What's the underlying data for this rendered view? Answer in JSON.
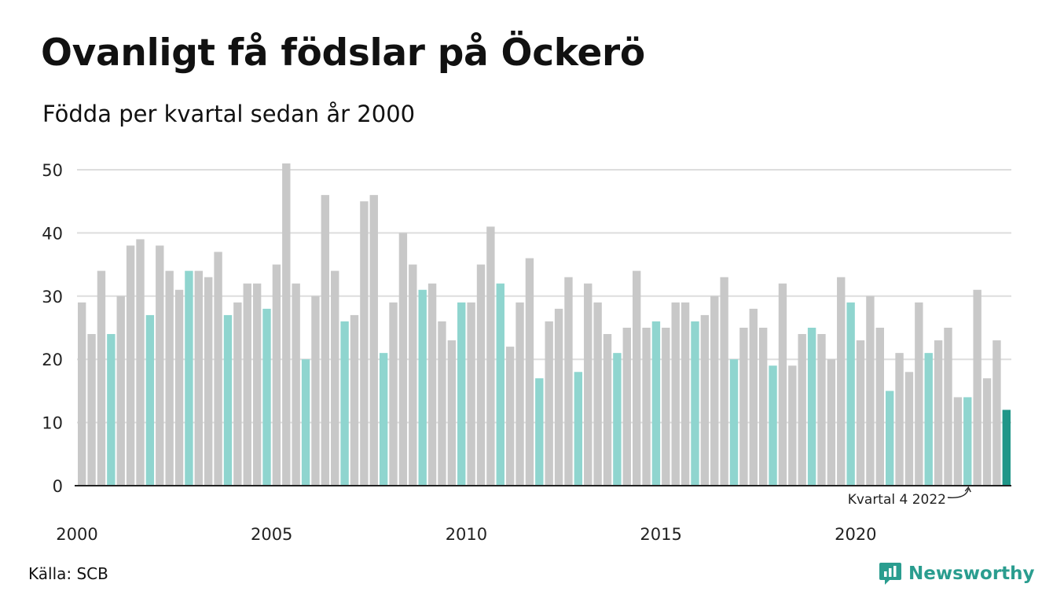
{
  "header": {
    "title": "Ovanligt få födslar på Öckerö",
    "subtitle": "Födda per kvartal sedan år 2000"
  },
  "footer": {
    "source": "Källa: SCB",
    "brand": "Newsworthy"
  },
  "colors": {
    "bar_default": "#c8c8c8",
    "bar_q4": "#8fd5cf",
    "bar_latest": "#1f9688",
    "grid": "#dddddd",
    "axis": "#222222",
    "brand": "#2a9d8f"
  },
  "chart_data": {
    "type": "bar",
    "title": "Ovanligt få födslar på Öckerö",
    "subtitle": "Födda per kvartal sedan år 2000",
    "ylim": [
      0,
      50
    ],
    "y_ticks": [
      0,
      10,
      20,
      30,
      40,
      50
    ],
    "x_tick_labels": [
      "2000",
      "2005",
      "2010",
      "2015",
      "2020"
    ],
    "grid": true,
    "start_year": 2000,
    "values": [
      29,
      24,
      34,
      24,
      30,
      38,
      39,
      27,
      38,
      34,
      31,
      34,
      34,
      33,
      37,
      27,
      29,
      32,
      32,
      28,
      35,
      51,
      32,
      20,
      30,
      46,
      34,
      26,
      27,
      45,
      46,
      21,
      29,
      40,
      35,
      31,
      32,
      26,
      23,
      29,
      29,
      35,
      41,
      32,
      22,
      29,
      36,
      17,
      26,
      28,
      33,
      18,
      32,
      29,
      24,
      21,
      25,
      34,
      25,
      26,
      25,
      29,
      29,
      26,
      27,
      30,
      33,
      20,
      25,
      28,
      25,
      19,
      32,
      19,
      24,
      25,
      24,
      20,
      33,
      29,
      23,
      30,
      25,
      15,
      21,
      18,
      29,
      21,
      23,
      25,
      14,
      14,
      31,
      17,
      23,
      12
    ],
    "highlight": "Q4 bars in light teal; latest bar in dark teal",
    "annotation": "Kvartal 4 2022"
  }
}
